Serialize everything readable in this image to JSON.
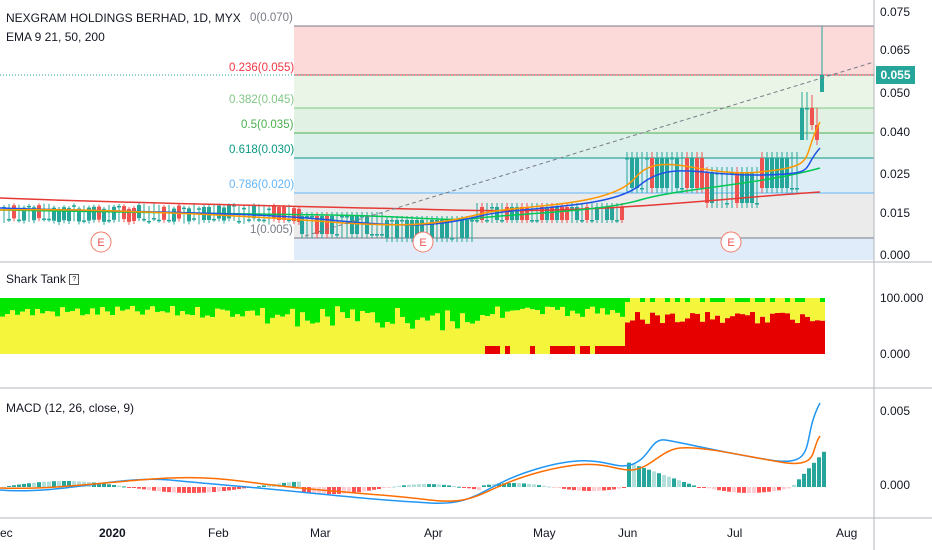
{
  "header": {
    "symbol_title": "NEXGRAM HOLDINGS BERHAD, 1D, MYX",
    "indicator_ema": "EMA 9 21, 50, 200"
  },
  "fib_levels": [
    {
      "label": "0(0.070)",
      "price": 0.07,
      "color": "#787b86"
    },
    {
      "label": "0.236(0.055)",
      "price": 0.055,
      "color": "#f23645"
    },
    {
      "label": "0.382(0.045)",
      "price": 0.045,
      "color": "#81c784"
    },
    {
      "label": "0.5(0.035)",
      "price": 0.035,
      "color": "#4caf50"
    },
    {
      "label": "0.618(0.030)",
      "price": 0.03,
      "color": "#089981"
    },
    {
      "label": "0.786(0.020)",
      "price": 0.02,
      "color": "#64b5f6"
    },
    {
      "label": "1(0.005)",
      "price": 0.005,
      "color": "#787b86"
    }
  ],
  "price_axis": {
    "ticks": [
      "0.075",
      "0.065",
      "0.050",
      "0.040",
      "0.025",
      "0.015",
      "0.000"
    ],
    "current_price": "0.055",
    "current_color": "#26a69a"
  },
  "earnings_markers": [
    "E",
    "E",
    "E"
  ],
  "shark_panel": {
    "title": "Shark Tank",
    "ticks": [
      "100.000",
      "0.000"
    ],
    "colors": {
      "green": "#00e600",
      "yellow": "#f5f53c",
      "red": "#e60000"
    }
  },
  "macd_panel": {
    "title": "MACD (12, 26, close, 9)",
    "ticks": [
      "0.005",
      "0.000"
    ],
    "colors": {
      "macd": "#2196f3",
      "signal": "#ff6d00",
      "hist_up": "#26a69a",
      "hist_up_weak": "#b2dfdb",
      "hist_down": "#ff5252",
      "hist_down_weak": "#ffcdd2"
    }
  },
  "time_axis": {
    "labels": [
      "ec",
      "2020",
      "Feb",
      "Mar",
      "Apr",
      "May",
      "Jun",
      "Jul",
      "Aug"
    ]
  },
  "colors": {
    "candle_up": "#26a69a",
    "candle_down": "#ef5350",
    "ema_fast": "#ff9800",
    "ema_mid": "#1e53e5",
    "ema_slow": "#00c853",
    "ema_200": "#e53935"
  }
}
